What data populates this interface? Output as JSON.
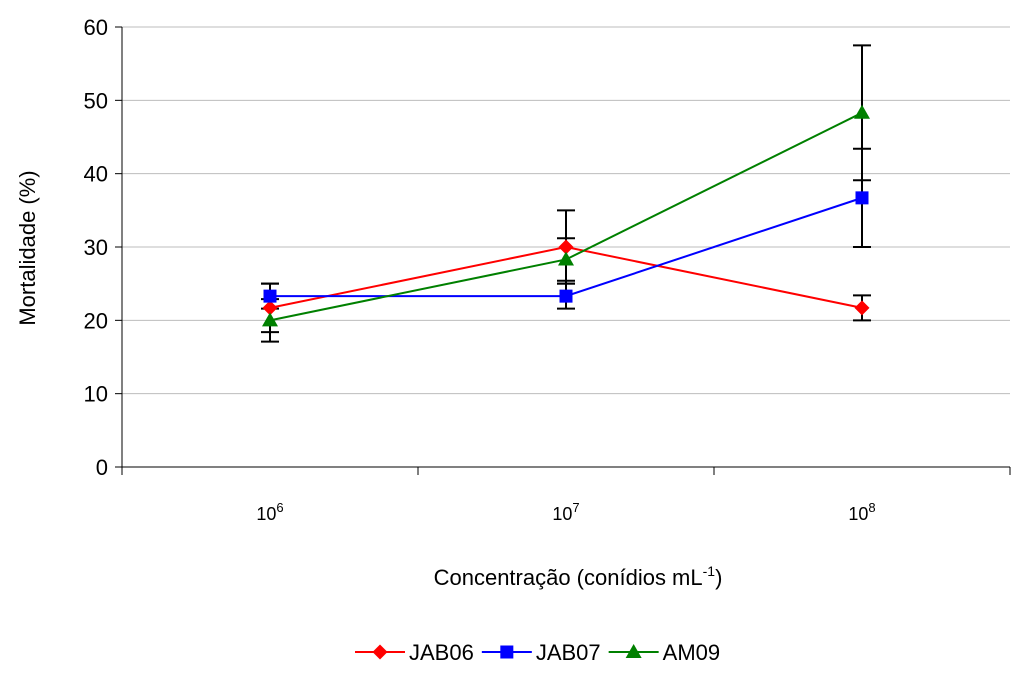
{
  "chart_data": {
    "type": "line",
    "categories": [
      "10^6",
      "10^7",
      "10^8"
    ],
    "x_tick_labels": [
      {
        "base": "10",
        "exp": "6"
      },
      {
        "base": "10",
        "exp": "7"
      },
      {
        "base": "10",
        "exp": "8"
      }
    ],
    "ylabel": "Mortalidade (%)",
    "xlabel": {
      "main": "Concentração (conídios mL",
      "sup": "-1",
      "suffix": ")"
    },
    "ylim": [
      0,
      60
    ],
    "y_ticks": [
      0,
      10,
      20,
      30,
      40,
      50,
      60
    ],
    "grid": true,
    "legend_position": "bottom-center",
    "series": [
      {
        "name": "JAB06",
        "color": "#ff0000",
        "marker": "diamond",
        "values": [
          21.7,
          30.0,
          21.7
        ],
        "errors": [
          3.3,
          5.0,
          1.7
        ]
      },
      {
        "name": "JAB07",
        "color": "#0000ff",
        "marker": "square",
        "values": [
          23.3,
          23.3,
          36.7
        ],
        "errors": [
          1.7,
          1.7,
          6.7
        ]
      },
      {
        "name": "AM09",
        "color": "#008000",
        "marker": "triangle",
        "values": [
          20.0,
          28.3,
          48.3
        ],
        "errors": [
          2.9,
          2.9,
          9.2
        ]
      }
    ]
  }
}
